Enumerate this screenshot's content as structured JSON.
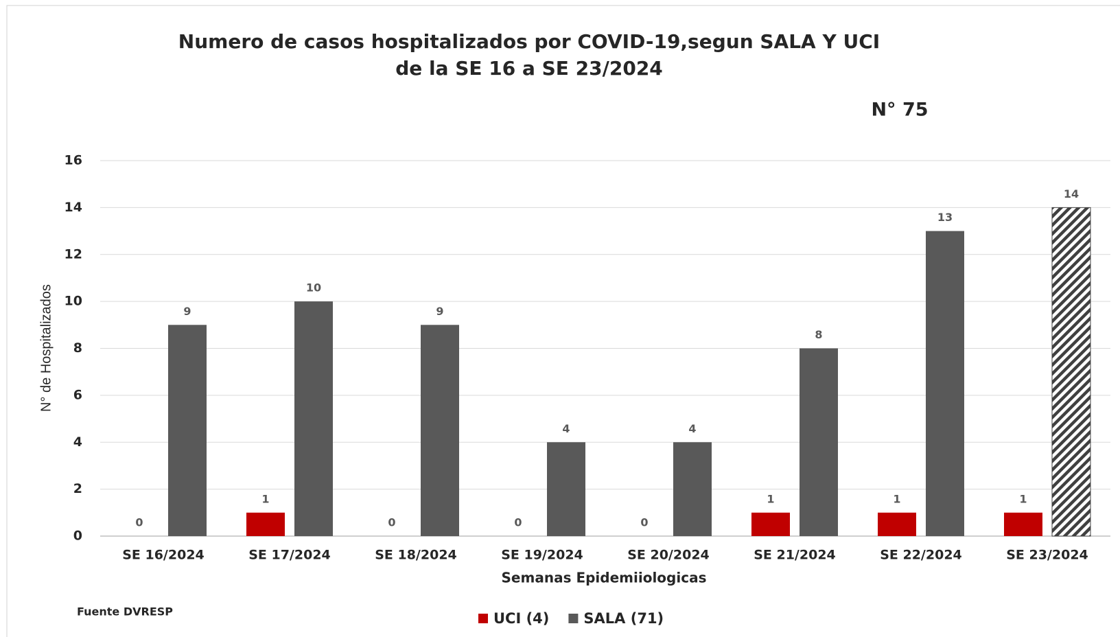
{
  "chart_data": {
    "type": "bar",
    "title": [
      "Numero de casos hospitalizados por COVID-19,segun SALA Y UCI",
      "de la SE 16 a SE 23/2024"
    ],
    "annotation": "N° 75",
    "source": "Fuente DVRESP",
    "xlabel": "Semanas Epidemiiologicas",
    "ylabel": "N° de Hospitalizados",
    "categories": [
      "SE 16/2024",
      "SE 17/2024",
      "SE 18/2024",
      "SE 19/2024",
      "SE 20/2024",
      "SE 21/2024",
      "SE 22/2024",
      "SE 23/2024"
    ],
    "series": [
      {
        "name": "UCI (4)",
        "color": "#c00000",
        "values": [
          0,
          1,
          0,
          0,
          0,
          1,
          1,
          1
        ]
      },
      {
        "name": "SALA (71)",
        "color": "#595959",
        "values": [
          9,
          10,
          9,
          4,
          4,
          8,
          13,
          14
        ],
        "hatched": [
          false,
          false,
          false,
          false,
          false,
          false,
          false,
          true
        ]
      }
    ],
    "ylim": [
      0,
      16
    ],
    "yticks": [
      0,
      2,
      4,
      6,
      8,
      10,
      12,
      14,
      16
    ],
    "grid": true,
    "legend": "bottom"
  }
}
